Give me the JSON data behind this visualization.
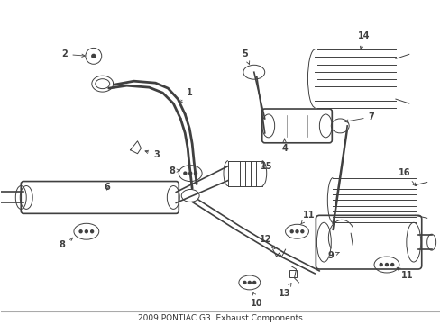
{
  "bg_color": "#ffffff",
  "line_color": "#404040",
  "title": "2009 PONTIAC G3  Exhaust Components",
  "title_color": "#333333",
  "title_fontsize": 6.5,
  "lw_pipe": 2.0,
  "lw_main": 1.2,
  "lw_thin": 0.7,
  "lw_label": 0.6
}
